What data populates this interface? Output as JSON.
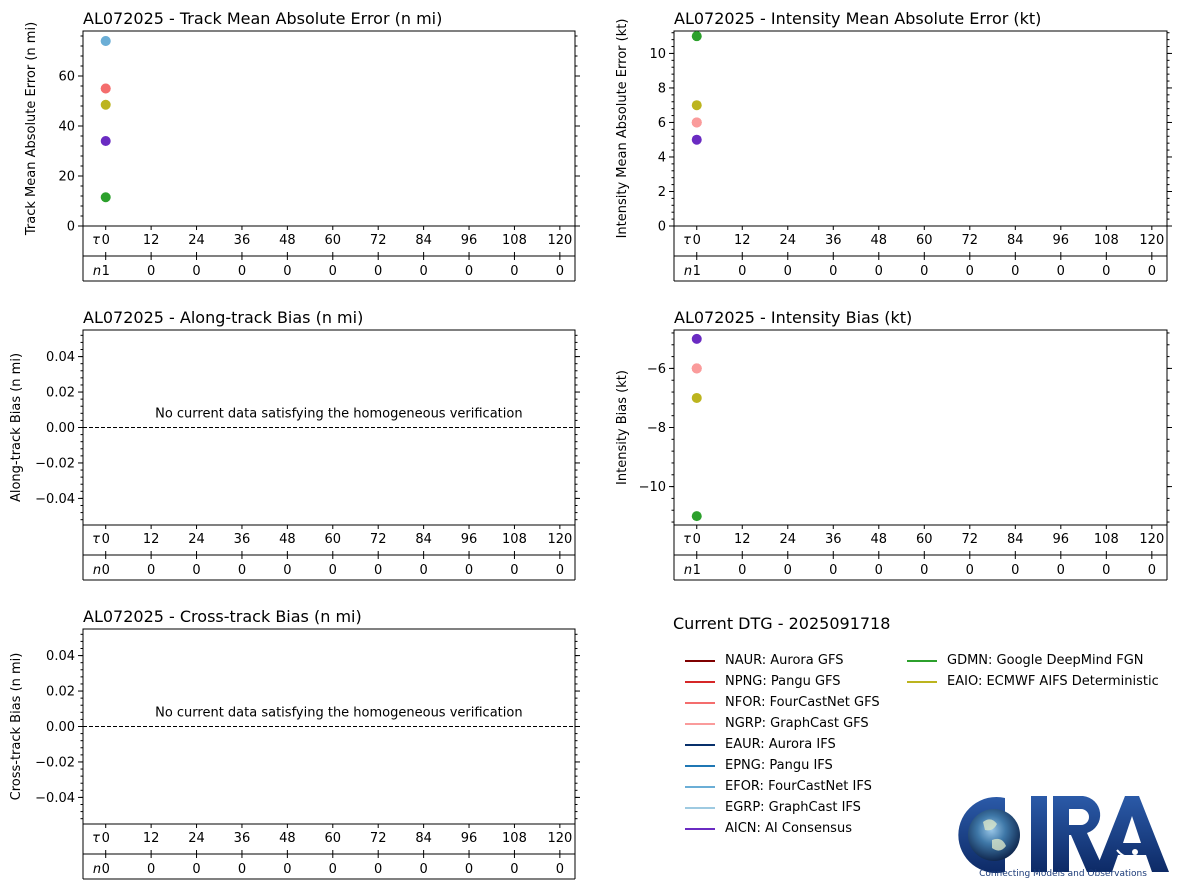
{
  "tau_symbol": "τ",
  "n_symbol": "n",
  "lead_times": [
    "0",
    "12",
    "24",
    "36",
    "48",
    "60",
    "72",
    "84",
    "96",
    "108",
    "120"
  ],
  "colors": {
    "NAUR": "#7f0000",
    "NPNG": "#d62728",
    "NFOR": "#f46d6d",
    "NGRP": "#fa9b9b",
    "EAUR": "#08306b",
    "EPNG": "#1f77b4",
    "EFOR": "#6baed6",
    "EGRP": "#9ecae1",
    "AICN": "#6a2bc2",
    "GDMN": "#2ca02c",
    "EAIO": "#bcb41e"
  },
  "chart_data": [
    {
      "id": "track_mae",
      "type": "scatter",
      "title": "AL072025 - Track Mean Absolute Error (n mi)",
      "ylabel": "Track Mean Absolute Error (n mi)",
      "ylim": [
        0,
        78
      ],
      "yticks": [
        0,
        20,
        40,
        60
      ],
      "ytick_labels": [
        "0",
        "20",
        "40",
        "60"
      ],
      "points": [
        {
          "model": "EGRP",
          "x": 0,
          "y": 74
        },
        {
          "model": "EFOR",
          "x": 0,
          "y": 74
        },
        {
          "model": "NGRP",
          "x": 0,
          "y": 55
        },
        {
          "model": "NFOR",
          "x": 0,
          "y": 55
        },
        {
          "model": "EAIO",
          "x": 0,
          "y": 48.5
        },
        {
          "model": "AICN",
          "x": 0,
          "y": 34
        },
        {
          "model": "GDMN",
          "x": 0,
          "y": 11.5
        }
      ],
      "n": [
        "1",
        "0",
        "0",
        "0",
        "0",
        "0",
        "0",
        "0",
        "0",
        "0",
        "0"
      ],
      "message": "",
      "zero_line": false
    },
    {
      "id": "intensity_mae",
      "type": "scatter",
      "title": "AL072025 - Intensity Mean Absolute Error (kt)",
      "ylabel": "Intensity Mean Absolute Error (kt)",
      "ylim": [
        0,
        11.3
      ],
      "yticks": [
        0,
        2,
        4,
        6,
        8,
        10
      ],
      "ytick_labels": [
        "0",
        "2",
        "4",
        "6",
        "8",
        "10"
      ],
      "points": [
        {
          "model": "GDMN",
          "x": 0,
          "y": 11
        },
        {
          "model": "EAIO",
          "x": 0,
          "y": 7
        },
        {
          "model": "NFOR",
          "x": 0,
          "y": 6
        },
        {
          "model": "NGRP",
          "x": 0,
          "y": 6
        },
        {
          "model": "AICN",
          "x": 0,
          "y": 5
        }
      ],
      "n": [
        "1",
        "0",
        "0",
        "0",
        "0",
        "0",
        "0",
        "0",
        "0",
        "0",
        "0"
      ],
      "message": "",
      "zero_line": false
    },
    {
      "id": "along_track_bias",
      "type": "scatter",
      "title": "AL072025 - Along-track Bias (n mi)",
      "ylabel": "Along-track Bias (n mi)",
      "ylim": [
        -0.055,
        0.055
      ],
      "yticks": [
        -0.04,
        -0.02,
        0.0,
        0.02,
        0.04
      ],
      "ytick_labels": [
        "−0.04",
        "−0.02",
        "0.00",
        "0.02",
        "0.04"
      ],
      "points": [],
      "n": [
        "0",
        "0",
        "0",
        "0",
        "0",
        "0",
        "0",
        "0",
        "0",
        "0",
        "0"
      ],
      "message": "No current data satisfying the homogeneous verification",
      "zero_line": true
    },
    {
      "id": "intensity_bias",
      "type": "scatter",
      "title": "AL072025 - Intensity Bias (kt)",
      "ylabel": "Intensity Bias (kt)",
      "ylim": [
        -11.3,
        -4.7
      ],
      "yticks": [
        -10,
        -8,
        -6
      ],
      "ytick_labels": [
        "−10",
        "−8",
        "−6"
      ],
      "points": [
        {
          "model": "AICN",
          "x": 0,
          "y": -5
        },
        {
          "model": "NFOR",
          "x": 0,
          "y": -6
        },
        {
          "model": "NGRP",
          "x": 0,
          "y": -6
        },
        {
          "model": "EAIO",
          "x": 0,
          "y": -7
        },
        {
          "model": "GDMN",
          "x": 0,
          "y": -11
        }
      ],
      "n": [
        "1",
        "0",
        "0",
        "0",
        "0",
        "0",
        "0",
        "0",
        "0",
        "0",
        "0"
      ],
      "message": "",
      "zero_line": false
    },
    {
      "id": "cross_track_bias",
      "type": "scatter",
      "title": "AL072025 - Cross-track Bias (n mi)",
      "ylabel": "Cross-track Bias (n mi)",
      "ylim": [
        -0.055,
        0.055
      ],
      "yticks": [
        -0.04,
        -0.02,
        0.0,
        0.02,
        0.04
      ],
      "ytick_labels": [
        "−0.04",
        "−0.02",
        "0.00",
        "0.02",
        "0.04"
      ],
      "points": [],
      "n": [
        "0",
        "0",
        "0",
        "0",
        "0",
        "0",
        "0",
        "0",
        "0",
        "0",
        "0"
      ],
      "message": "No current data satisfying the homogeneous verification",
      "zero_line": true
    }
  ],
  "legend": {
    "title": "Current DTG - 2025091718",
    "col1": [
      {
        "code": "NAUR",
        "label": "NAUR: Aurora GFS"
      },
      {
        "code": "NPNG",
        "label": "NPNG: Pangu GFS"
      },
      {
        "code": "NFOR",
        "label": "NFOR: FourCastNet GFS"
      },
      {
        "code": "NGRP",
        "label": "NGRP: GraphCast GFS"
      },
      {
        "code": "EAUR",
        "label": "EAUR: Aurora IFS"
      },
      {
        "code": "EPNG",
        "label": "EPNG: Pangu IFS"
      },
      {
        "code": "EFOR",
        "label": "EFOR: FourCastNet IFS"
      },
      {
        "code": "EGRP",
        "label": "EGRP: GraphCast IFS"
      },
      {
        "code": "AICN",
        "label": "AICN: AI Consensus"
      }
    ],
    "col2": [
      {
        "code": "GDMN",
        "label": "GDMN: Google DeepMind FGN"
      },
      {
        "code": "EAIO",
        "label": "EAIO: ECMWF AIFS Deterministic"
      }
    ]
  },
  "logo": {
    "text": "CIRA",
    "tagline": "Connecting Models and Observations"
  }
}
